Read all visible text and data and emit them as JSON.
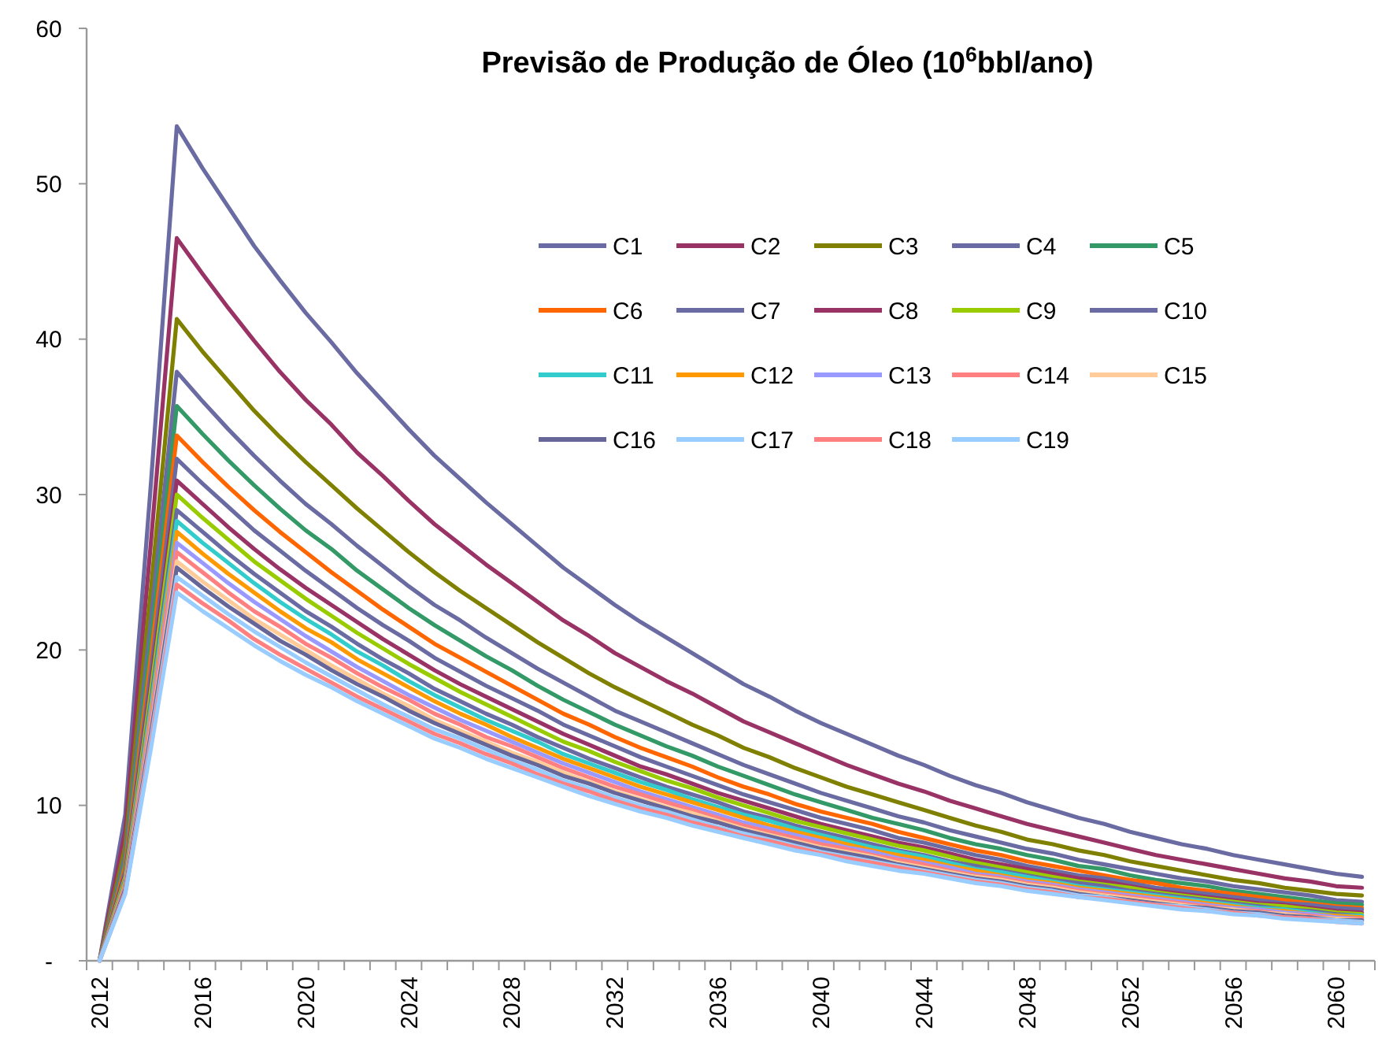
{
  "chart_data": {
    "type": "line",
    "title": "Previsão de Produção de Óleo (10$^{6}$bbl/ano)",
    "categories": [
      "2012",
      null,
      null,
      null,
      "2016",
      null,
      null,
      null,
      "2020",
      null,
      null,
      null,
      "2024",
      null,
      null,
      null,
      "2028",
      null,
      null,
      null,
      "2032",
      null,
      null,
      null,
      "2036",
      null,
      null,
      null,
      "2040",
      null,
      null,
      null,
      "2044",
      null,
      null,
      null,
      "2048",
      null,
      null,
      null,
      "2052",
      null,
      null,
      null,
      "2056",
      null,
      null,
      null,
      "2060",
      null
    ],
    "ylim": [
      0,
      60
    ],
    "yticks": [
      {
        "value": 0,
        "label": "-"
      },
      10,
      20,
      30,
      40,
      50,
      60
    ],
    "grid": false,
    "legend": "top right",
    "marker": "none",
    "line_style": "solid",
    "series": [
      {
        "name": "C1",
        "color": "#6b6ba3",
        "values": [
          0,
          9.4,
          30.8,
          53.7,
          51,
          48.5,
          46,
          43.8,
          41.7,
          39.8,
          37.8,
          36,
          34.2,
          32.5,
          31,
          29.5,
          28.1,
          26.7,
          25.3,
          24.1,
          22.9,
          21.8,
          20.8,
          19.8,
          18.8,
          17.8,
          17,
          16.1,
          15.3,
          14.6,
          13.9,
          13.2,
          12.6,
          11.9,
          11.3,
          10.8,
          10.2,
          9.7,
          9.2,
          8.8,
          8.3,
          7.9,
          7.5,
          7.2,
          6.8,
          6.5,
          6.2,
          5.9,
          5.6,
          5.4
        ]
      },
      {
        "name": "C2",
        "color": "#993366",
        "values": [
          0,
          8.4,
          27.0,
          46.5,
          44.2,
          42.0,
          39.9,
          37.9,
          36.1,
          34.5,
          32.7,
          31.2,
          29.6,
          28.1,
          26.8,
          25.5,
          24.3,
          23.1,
          21.9,
          20.9,
          19.8,
          18.9,
          18.0,
          17.2,
          16.3,
          15.4,
          14.7,
          14.0,
          13.3,
          12.6,
          12.0,
          11.4,
          10.9,
          10.3,
          9.8,
          9.3,
          8.8,
          8.4,
          8.0,
          7.6,
          7.2,
          6.8,
          6.5,
          6.2,
          5.9,
          5.6,
          5.3,
          5.1,
          4.8,
          4.7
        ]
      },
      {
        "name": "C3",
        "color": "#808000",
        "values": [
          0,
          7.4,
          24.0,
          41.3,
          39.2,
          37.3,
          35.4,
          33.7,
          32.1,
          30.6,
          29.1,
          27.7,
          26.3,
          25.0,
          23.8,
          22.7,
          21.6,
          20.5,
          19.5,
          18.5,
          17.6,
          16.8,
          16.0,
          15.2,
          14.5,
          13.7,
          13.1,
          12.4,
          11.8,
          11.2,
          10.7,
          10.2,
          9.7,
          9.2,
          8.7,
          8.3,
          7.8,
          7.5,
          7.1,
          6.8,
          6.4,
          6.1,
          5.8,
          5.5,
          5.2,
          5.0,
          4.7,
          4.5,
          4.3,
          4.2
        ]
      },
      {
        "name": "C4",
        "color": "#6b6ba3",
        "values": [
          0,
          6.8,
          22.0,
          37.9,
          36.0,
          34.2,
          32.5,
          30.9,
          29.4,
          28.1,
          26.7,
          25.4,
          24.1,
          22.9,
          21.9,
          20.8,
          19.8,
          18.8,
          17.9,
          17.0,
          16.1,
          15.4,
          14.7,
          14.0,
          13.3,
          12.6,
          12.0,
          11.4,
          10.8,
          10.3,
          9.8,
          9.3,
          8.9,
          8.4,
          8.0,
          7.6,
          7.2,
          6.9,
          6.5,
          6.2,
          5.9,
          5.6,
          5.3,
          5.1,
          4.8,
          4.6,
          4.4,
          4.2,
          3.9,
          3.8
        ]
      },
      {
        "name": "C5",
        "color": "#339966",
        "values": [
          0,
          6.4,
          20.7,
          35.7,
          33.9,
          32.2,
          30.6,
          29.1,
          27.7,
          26.5,
          25.1,
          23.9,
          22.7,
          21.6,
          20.6,
          19.6,
          18.7,
          17.7,
          16.8,
          16.0,
          15.2,
          14.5,
          13.8,
          13.2,
          12.5,
          11.9,
          11.3,
          10.7,
          10.2,
          9.7,
          9.2,
          8.8,
          8.4,
          7.9,
          7.5,
          7.2,
          6.8,
          6.5,
          6.1,
          5.9,
          5.5,
          5.2,
          5.0,
          4.8,
          4.5,
          4.3,
          4.1,
          3.9,
          3.7,
          3.6
        ]
      },
      {
        "name": "C6",
        "color": "#ff6600",
        "values": [
          0,
          6.1,
          19.6,
          33.8,
          32.1,
          30.5,
          29.0,
          27.6,
          26.3,
          25.0,
          23.8,
          22.6,
          21.5,
          20.4,
          19.5,
          18.6,
          17.7,
          16.8,
          15.9,
          15.2,
          14.4,
          13.7,
          13.1,
          12.5,
          11.8,
          11.2,
          10.7,
          10.1,
          9.6,
          9.2,
          8.8,
          8.3,
          7.9,
          7.5,
          7.1,
          6.8,
          6.4,
          6.1,
          5.8,
          5.5,
          5.2,
          5.0,
          4.7,
          4.5,
          4.3,
          4.1,
          3.9,
          3.7,
          3.5,
          3.4
        ]
      },
      {
        "name": "C7",
        "color": "#6b6ba3",
        "values": [
          0,
          5.8,
          18.7,
          32.3,
          30.7,
          29.2,
          27.7,
          26.4,
          25.1,
          23.9,
          22.7,
          21.6,
          20.6,
          19.5,
          18.6,
          17.7,
          16.9,
          16.1,
          15.2,
          14.5,
          13.8,
          13.1,
          12.5,
          11.9,
          11.3,
          10.7,
          10.2,
          9.7,
          9.2,
          8.8,
          8.4,
          7.9,
          7.6,
          7.2,
          6.8,
          6.5,
          6.1,
          5.8,
          5.5,
          5.3,
          5.0,
          4.7,
          4.5,
          4.3,
          4.1,
          3.9,
          3.7,
          3.6,
          3.4,
          3.3
        ]
      },
      {
        "name": "C8",
        "color": "#993366",
        "values": [
          0,
          5.6,
          17.9,
          30.9,
          29.4,
          27.9,
          26.5,
          25.2,
          24.0,
          22.9,
          21.8,
          20.7,
          19.7,
          18.7,
          17.8,
          17.0,
          16.2,
          15.4,
          14.6,
          13.9,
          13.2,
          12.5,
          12.0,
          11.4,
          10.8,
          10.3,
          9.8,
          9.3,
          8.8,
          8.4,
          8.0,
          7.6,
          7.3,
          6.9,
          6.5,
          6.2,
          5.9,
          5.6,
          5.3,
          5.1,
          4.8,
          4.5,
          4.3,
          4.1,
          3.9,
          3.7,
          3.6,
          3.4,
          3.2,
          3.1
        ]
      },
      {
        "name": "C9",
        "color": "#99cc00",
        "values": [
          0,
          5.4,
          17.4,
          30.0,
          28.5,
          27.1,
          25.7,
          24.5,
          23.3,
          22.2,
          21.1,
          20.1,
          19.1,
          18.2,
          17.3,
          16.5,
          15.7,
          14.9,
          14.1,
          13.5,
          12.8,
          12.2,
          11.6,
          11.1,
          10.5,
          10.0,
          9.5,
          9.0,
          8.6,
          8.2,
          7.8,
          7.4,
          7.1,
          6.7,
          6.3,
          6.0,
          5.7,
          5.4,
          5.1,
          4.9,
          4.7,
          4.4,
          4.2,
          4.0,
          3.8,
          3.6,
          3.5,
          3.3,
          3.1,
          3.0
        ]
      },
      {
        "name": "C10",
        "color": "#6b6ba3",
        "values": [
          0,
          5.2,
          16.8,
          29.0,
          27.6,
          26.2,
          24.9,
          23.7,
          22.5,
          21.5,
          20.4,
          19.4,
          18.5,
          17.5,
          16.7,
          15.9,
          15.2,
          14.4,
          13.7,
          13.0,
          12.4,
          11.8,
          11.2,
          10.7,
          10.2,
          9.6,
          9.2,
          8.7,
          8.3,
          7.9,
          7.5,
          7.1,
          6.8,
          6.4,
          6.1,
          5.8,
          5.5,
          5.2,
          5.0,
          4.8,
          4.5,
          4.3,
          4.1,
          3.9,
          3.7,
          3.5,
          3.3,
          3.2,
          3.0,
          2.9
        ]
      },
      {
        "name": "C11",
        "color": "#33cccc",
        "values": [
          0,
          5.1,
          16.4,
          28.3,
          26.9,
          25.6,
          24.3,
          23.1,
          22.0,
          21.0,
          19.9,
          19.0,
          18.0,
          17.1,
          16.3,
          15.5,
          14.8,
          14.1,
          13.3,
          12.7,
          12.1,
          11.5,
          11.0,
          10.4,
          9.9,
          9.4,
          9.0,
          8.5,
          8.1,
          7.7,
          7.3,
          7.0,
          6.7,
          6.3,
          5.9,
          5.7,
          5.4,
          5.1,
          4.8,
          4.6,
          4.4,
          4.2,
          4.0,
          3.8,
          3.6,
          3.4,
          3.3,
          3.1,
          2.9,
          2.9
        ]
      },
      {
        "name": "C12",
        "color": "#ff9900",
        "values": [
          0,
          5.0,
          16.0,
          27.6,
          26.2,
          24.9,
          23.7,
          22.5,
          21.4,
          20.5,
          19.4,
          18.5,
          17.6,
          16.7,
          15.9,
          15.2,
          14.4,
          13.7,
          13.0,
          12.4,
          11.8,
          11.2,
          10.7,
          10.2,
          9.7,
          9.2,
          8.7,
          8.3,
          7.9,
          7.5,
          7.1,
          6.8,
          6.5,
          6.1,
          5.8,
          5.5,
          5.2,
          5.0,
          4.7,
          4.5,
          4.3,
          4.1,
          3.9,
          3.7,
          3.5,
          3.3,
          3.2,
          3.0,
          2.9,
          2.8
        ]
      },
      {
        "name": "C13",
        "color": "#9999ff",
        "values": [
          0,
          4.8,
          15.6,
          26.9,
          25.6,
          24.3,
          23.1,
          22.0,
          20.9,
          19.9,
          18.9,
          18.0,
          17.1,
          16.3,
          15.5,
          14.8,
          14.1,
          13.4,
          12.7,
          12.1,
          11.5,
          10.9,
          10.4,
          9.9,
          9.4,
          8.9,
          8.5,
          8.1,
          7.7,
          7.3,
          7.0,
          6.6,
          6.3,
          6.0,
          5.6,
          5.4,
          5.1,
          4.9,
          4.6,
          4.4,
          4.2,
          4.0,
          3.8,
          3.6,
          3.4,
          3.3,
          3.1,
          3.0,
          2.8,
          2.7
        ]
      },
      {
        "name": "C14",
        "color": "#ff8080",
        "values": [
          0,
          4.7,
          15.3,
          26.3,
          25.0,
          23.7,
          22.5,
          21.5,
          20.4,
          19.5,
          18.5,
          17.6,
          16.8,
          15.9,
          15.2,
          14.4,
          13.8,
          13.1,
          12.4,
          11.8,
          11.2,
          10.7,
          10.2,
          9.7,
          9.2,
          8.7,
          8.3,
          7.9,
          7.5,
          7.2,
          6.8,
          6.5,
          6.2,
          5.8,
          5.5,
          5.3,
          5.0,
          4.8,
          4.5,
          4.3,
          4.1,
          3.9,
          3.7,
          3.5,
          3.3,
          3.2,
          3.0,
          2.9,
          2.7,
          2.7
        ]
      },
      {
        "name": "C15",
        "color": "#ffcc99",
        "values": [
          0,
          4.6,
          14.9,
          25.7,
          24.4,
          23.2,
          22.0,
          21.0,
          20.0,
          19.0,
          18.1,
          17.2,
          16.4,
          15.5,
          14.8,
          14.1,
          13.4,
          12.8,
          12.1,
          11.5,
          10.9,
          10.4,
          9.9,
          9.5,
          9.0,
          8.5,
          8.1,
          7.7,
          7.3,
          7.0,
          6.7,
          6.3,
          6.0,
          5.7,
          5.4,
          5.2,
          4.9,
          4.7,
          4.4,
          4.2,
          4.0,
          3.8,
          3.6,
          3.4,
          3.3,
          3.1,
          3.0,
          2.8,
          2.7,
          2.6
        ]
      },
      {
        "name": "C16",
        "color": "#666699",
        "values": [
          0,
          4.6,
          14.7,
          25.3,
          24.0,
          22.8,
          21.7,
          20.6,
          19.7,
          18.7,
          17.8,
          17.0,
          16.1,
          15.3,
          14.6,
          13.9,
          13.2,
          12.6,
          11.9,
          11.4,
          10.8,
          10.3,
          9.8,
          9.3,
          8.9,
          8.4,
          8.0,
          7.6,
          7.2,
          6.9,
          6.6,
          6.2,
          5.9,
          5.6,
          5.3,
          5.1,
          4.8,
          4.6,
          4.3,
          4.1,
          3.9,
          3.7,
          3.5,
          3.4,
          3.2,
          3.1,
          2.9,
          2.8,
          2.6,
          2.6
        ]
      },
      {
        "name": "C17",
        "color": "#99ccff",
        "values": [
          0,
          4.4,
          14.3,
          24.7,
          23.5,
          22.3,
          21.2,
          20.2,
          19.2,
          18.3,
          17.4,
          16.5,
          15.7,
          14.9,
          14.3,
          13.6,
          12.9,
          12.3,
          11.6,
          11.1,
          10.5,
          10.0,
          9.6,
          9.1,
          8.6,
          8.2,
          7.8,
          7.4,
          7.0,
          6.7,
          6.4,
          6.1,
          5.8,
          5.5,
          5.2,
          5.0,
          4.7,
          4.5,
          4.2,
          4.1,
          3.8,
          3.6,
          3.5,
          3.3,
          3.1,
          3.0,
          2.8,
          2.7,
          2.6,
          2.5
        ]
      },
      {
        "name": "C18",
        "color": "#ff8080",
        "values": [
          0,
          4.4,
          14.0,
          24.2,
          23.0,
          21.9,
          20.7,
          19.7,
          18.8,
          17.9,
          17.0,
          16.2,
          15.4,
          14.6,
          14.0,
          13.3,
          12.7,
          12.0,
          11.4,
          10.9,
          10.3,
          9.8,
          9.4,
          8.9,
          8.5,
          8.0,
          7.7,
          7.3,
          6.9,
          6.6,
          6.3,
          6.0,
          5.7,
          5.4,
          5.1,
          4.9,
          4.6,
          4.4,
          4.1,
          4.0,
          3.8,
          3.6,
          3.4,
          3.2,
          3.1,
          2.9,
          2.8,
          2.7,
          2.5,
          2.4
        ]
      },
      {
        "name": "C19",
        "color": "#99ccff",
        "values": [
          0,
          4.3,
          13.7,
          23.7,
          22.5,
          21.4,
          20.3,
          19.3,
          18.4,
          17.6,
          16.7,
          15.9,
          15.1,
          14.3,
          13.7,
          13.0,
          12.4,
          11.8,
          11.2,
          10.6,
          10.1,
          9.6,
          9.2,
          8.7,
          8.3,
          7.9,
          7.5,
          7.1,
          6.8,
          6.4,
          6.1,
          5.8,
          5.6,
          5.3,
          5.0,
          4.8,
          4.5,
          4.3,
          4.1,
          3.9,
          3.7,
          3.5,
          3.3,
          3.2,
          3.0,
          2.9,
          2.7,
          2.6,
          2.5,
          2.4
        ]
      }
    ]
  }
}
